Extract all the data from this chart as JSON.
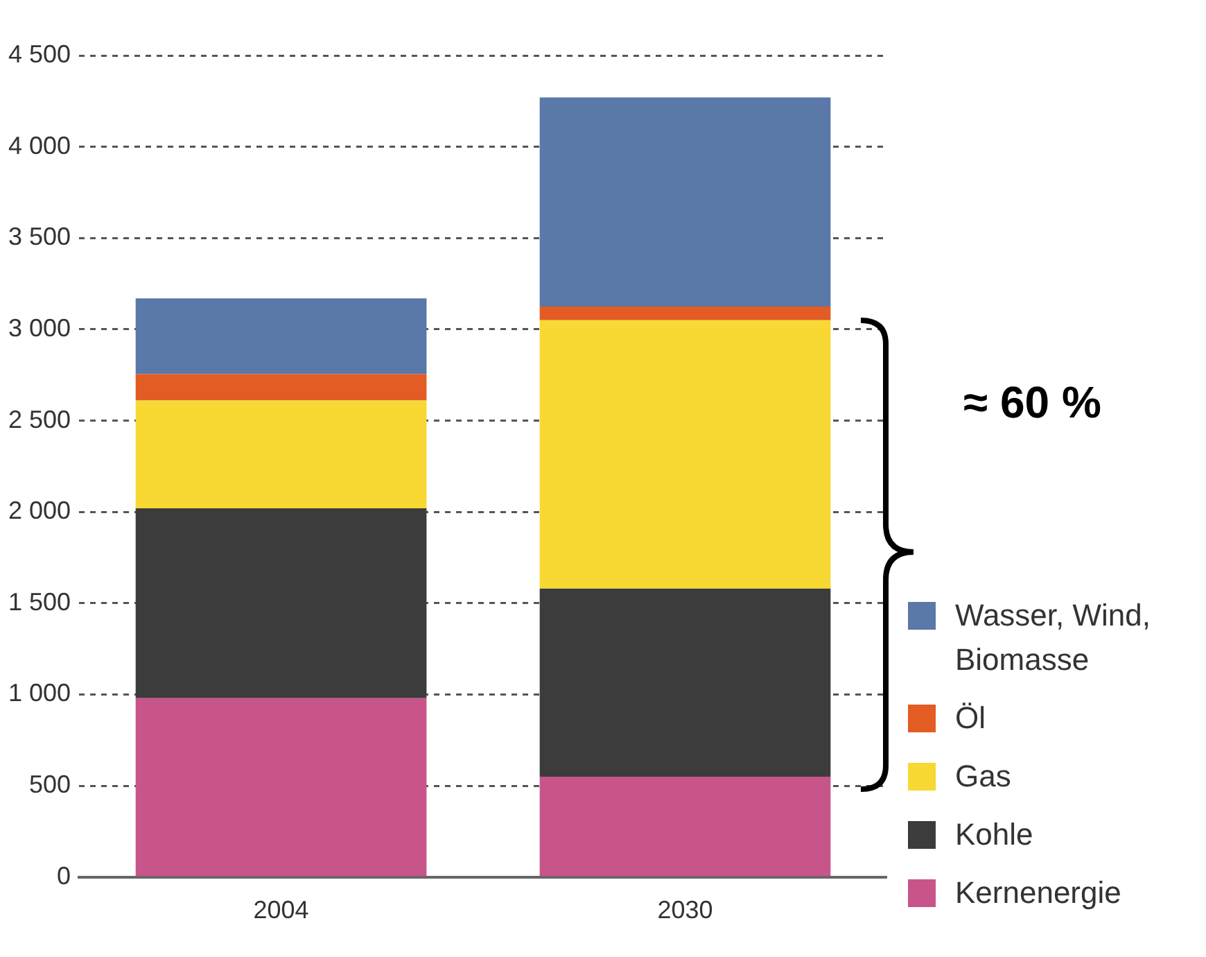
{
  "chart_data": {
    "type": "bar",
    "stacked": true,
    "categories": [
      "2004",
      "2030"
    ],
    "series": [
      {
        "name": "Kernenergie",
        "color": "#c8558a",
        "values": [
          980,
          550
        ]
      },
      {
        "name": "Kohle",
        "color": "#3c3c3c",
        "values": [
          1040,
          1030
        ]
      },
      {
        "name": "Gas",
        "color": "#f8d833",
        "values": [
          590,
          1470
        ]
      },
      {
        "name": "Öl",
        "color": "#e25c24",
        "values": [
          145,
          75
        ]
      },
      {
        "name": "Wasser, Wind, Biomasse",
        "color": "#5a78a8",
        "values": [
          415,
          1145
        ]
      }
    ],
    "ylim": [
      0,
      4500
    ],
    "yticks": [
      0,
      500,
      {
        "value": 1000,
        "label": "1 000"
      },
      {
        "value": 1500,
        "label": "1 500"
      },
      {
        "value": 2000,
        "label": "2 000"
      },
      {
        "value": 2500,
        "label": "2 500"
      },
      {
        "value": 3000,
        "label": "3 000"
      },
      {
        "value": 3500,
        "label": "3 500"
      },
      {
        "value": 4000,
        "label": "4 000"
      },
      {
        "value": 4500,
        "label": "4 500"
      }
    ],
    "grid": "y",
    "legend": "bottom right",
    "annotations": [
      "≈ 60 %"
    ]
  }
}
